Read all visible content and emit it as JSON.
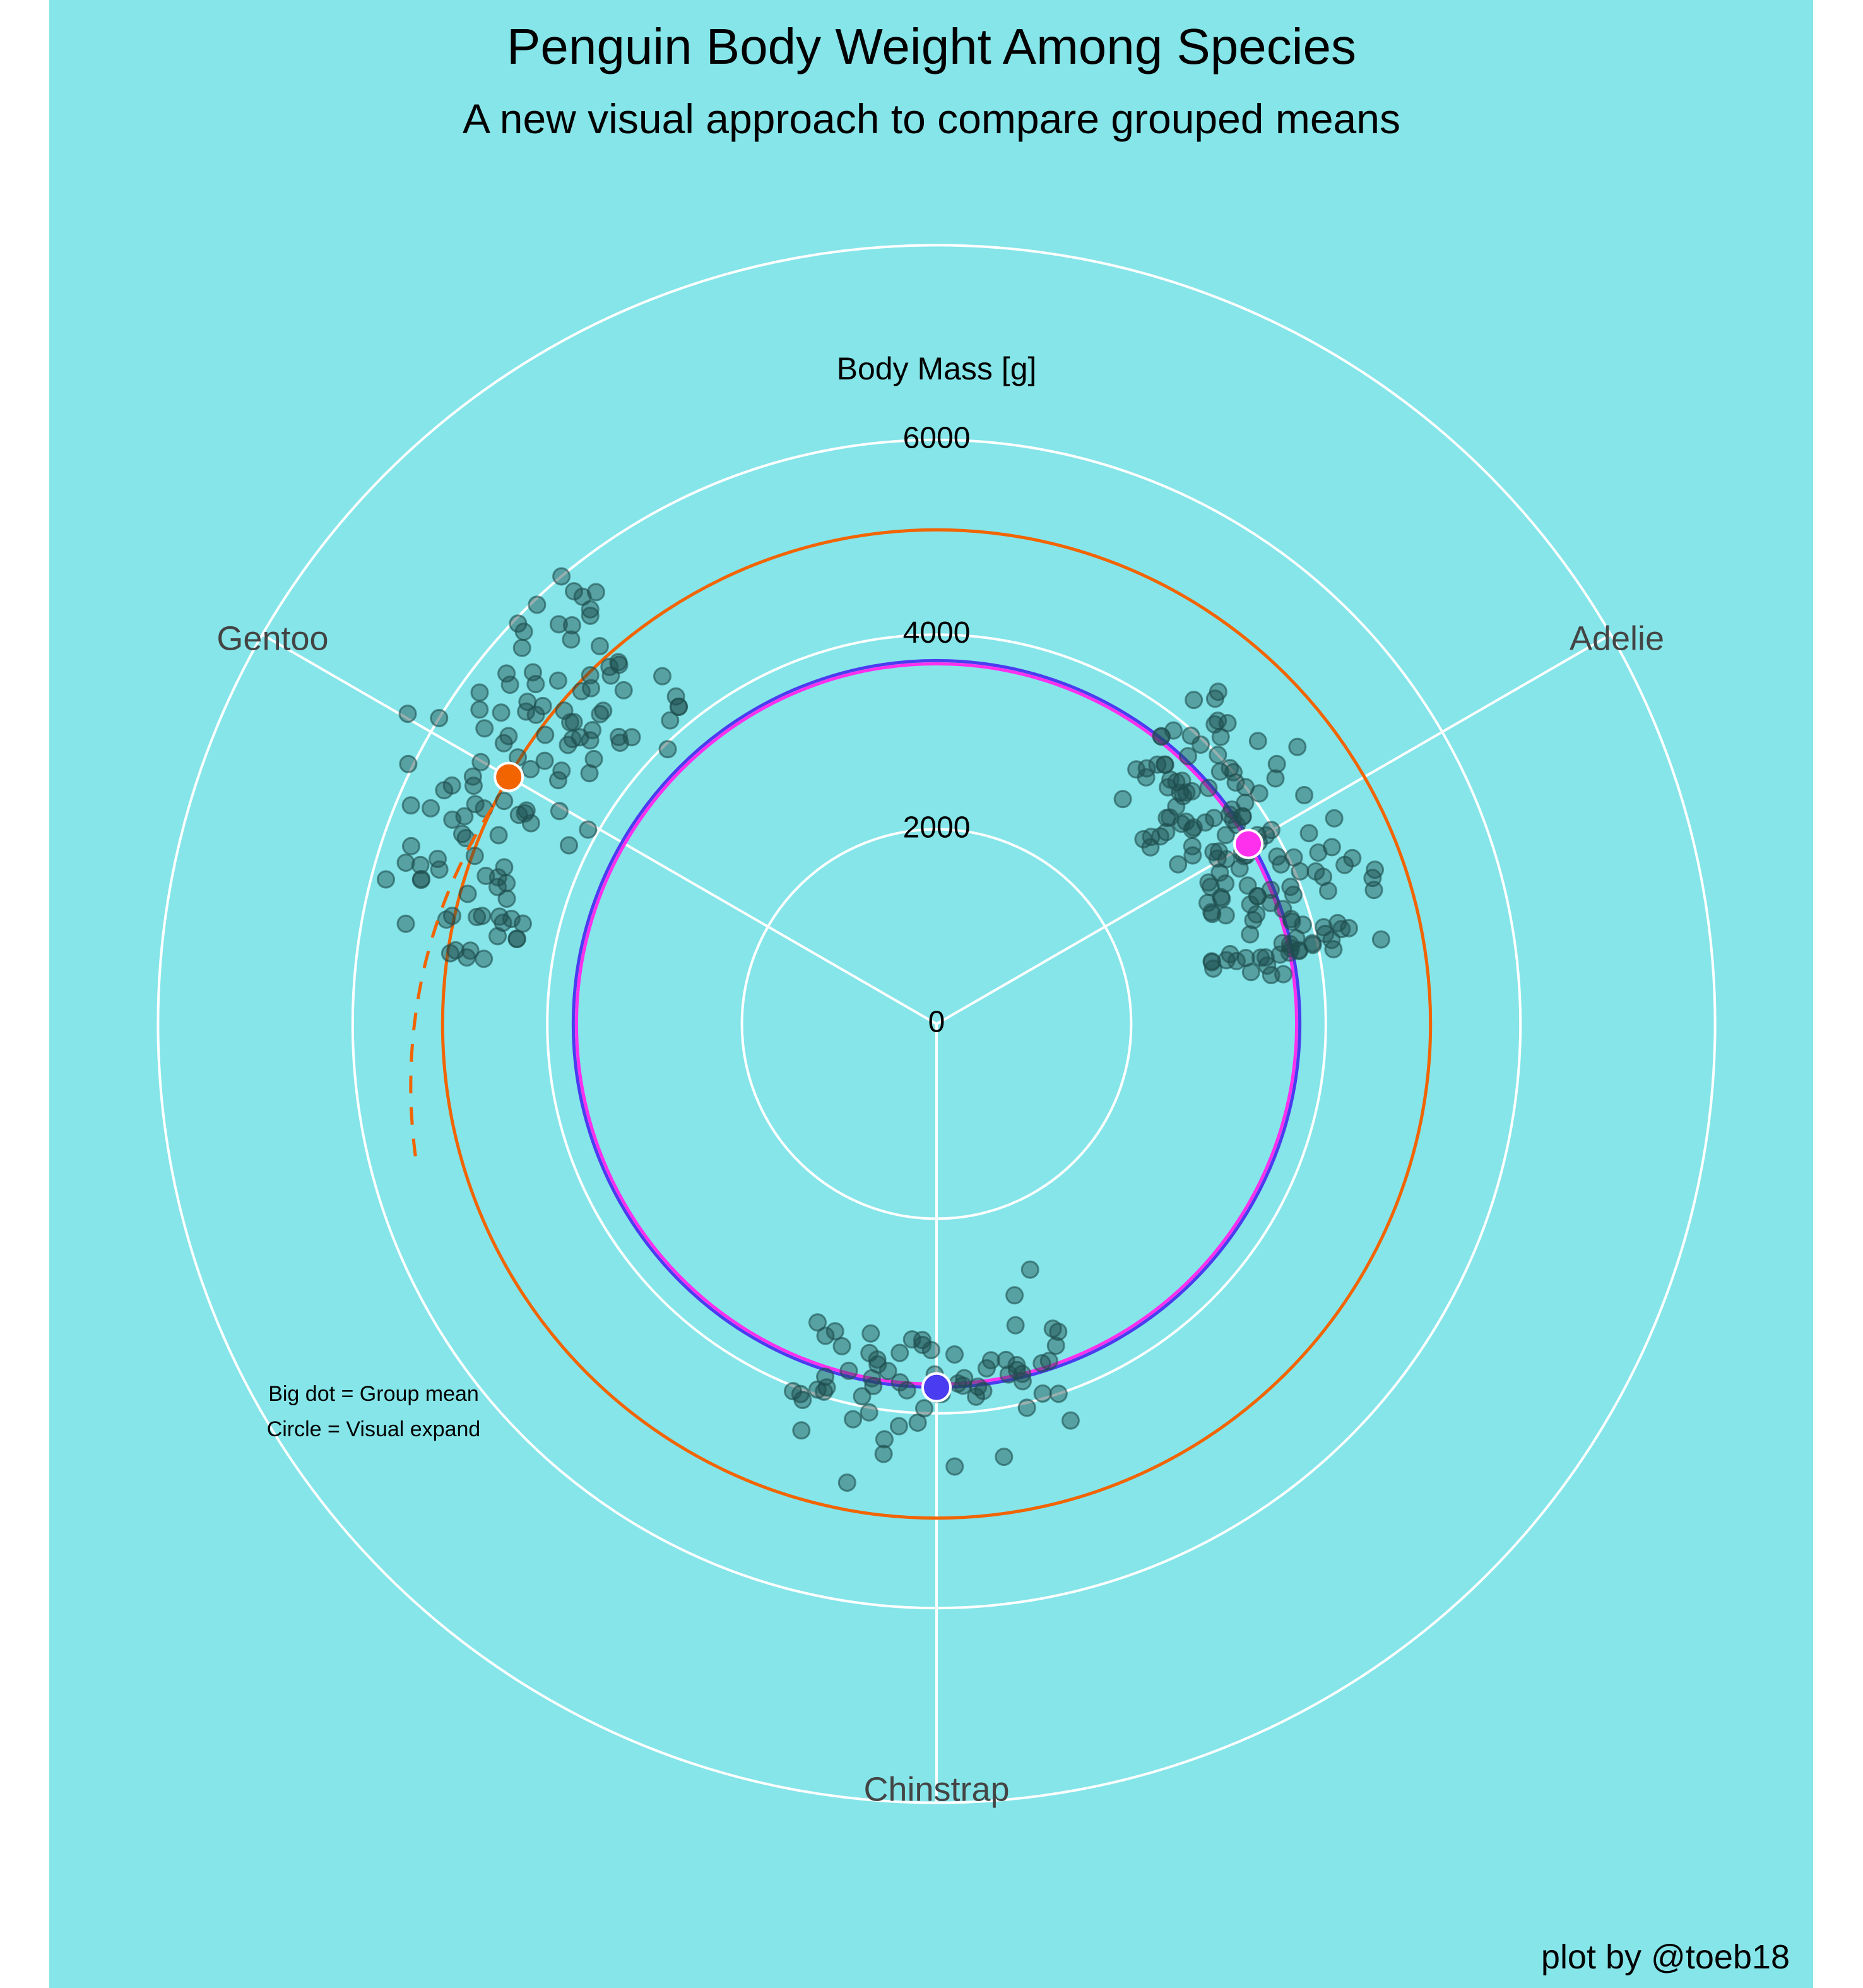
{
  "title": "Penguin Body Weight Among Species",
  "subtitle": "A new visual approach to compare grouped means",
  "axis_label": "Body Mass [g]",
  "caption": "plot by @toeb18",
  "annotation": [
    "Big dot = Group mean",
    "Circle = Visual expand"
  ],
  "colors": {
    "background": "#85E5E9",
    "grid": "#FFFFFF",
    "points": "#1E4E4E",
    "gentoo": "#F26400",
    "adelie": "#FF2FEE",
    "chinstrap": "#4A3CF0"
  },
  "chart_data": {
    "type": "scatter",
    "coordinate_system": "polar",
    "categories": [
      "Adelie",
      "Chinstrap",
      "Gentoo"
    ],
    "r_ticks": [
      "0",
      "2000",
      "4000",
      "6000"
    ],
    "r_grid": [
      0,
      2000,
      4000,
      6000,
      8000
    ],
    "r_max": 8000,
    "axis_label": "Body Mass [g]",
    "means": [
      {
        "species": "Adelie",
        "value": 3700,
        "color": "#FF2FEE"
      },
      {
        "species": "Chinstrap",
        "value": 3733,
        "color": "#4A3CF0"
      },
      {
        "species": "Gentoo",
        "value": 5076,
        "color": "#F26400"
      }
    ],
    "points": {
      "Adelie": [
        3750,
        3800,
        3250,
        3450,
        3650,
        3625,
        4675,
        3475,
        4250,
        3300,
        3700,
        3200,
        3800,
        4400,
        3700,
        3450,
        4500,
        3325,
        4200,
        3400,
        3600,
        3800,
        3950,
        3800,
        3800,
        3550,
        3200,
        3150,
        3950,
        3250,
        3900,
        3300,
        3900,
        3325,
        4150,
        3950,
        3550,
        3300,
        4650,
        3150,
        3900,
        3100,
        4400,
        3000,
        4600,
        3425,
        2975,
        3450,
        4150,
        3500,
        4300,
        3450,
        4050,
        2900,
        3700,
        3550,
        3800,
        2850,
        3750,
        3150,
        4400,
        3600,
        4050,
        2850,
        3950,
        3350,
        4100,
        3050,
        4450,
        3600,
        3900,
        3550,
        4150,
        3700,
        4250,
        3700,
        3900,
        3550,
        4000,
        3200,
        4700,
        3800,
        4200,
        3350,
        3550,
        3800,
        3500,
        3950,
        3600,
        3550,
        4300,
        3400,
        4450,
        3300,
        4300,
        3700,
        4350,
        2900,
        4100,
        3725,
        4725,
        3075,
        4250,
        2925,
        3550,
        3750,
        3900,
        3175,
        4775,
        3825,
        4600,
        3200,
        4275,
        3900,
        4075,
        2900,
        3775,
        3350,
        3325,
        3150,
        3500,
        3450,
        3875,
        3050,
        4000,
        3275,
        4300,
        3050,
        4000,
        3325,
        3500,
        3500,
        4475,
        3425,
        3900,
        3175,
        3975,
        3400,
        4250,
        3400,
        3475,
        3050,
        3725,
        3000,
        3650,
        4250,
        3475,
        3450,
        3750,
        3700,
        4000
      ],
      "Chinstrap": [
        3500,
        3900,
        3650,
        3525,
        3725,
        3950,
        3250,
        3750,
        4150,
        3700,
        3800,
        3775,
        3700,
        4050,
        3575,
        4050,
        3300,
        3700,
        3450,
        4400,
        3600,
        3400,
        2900,
        3800,
        3300,
        4150,
        3400,
        3800,
        3700,
        4550,
        3200,
        4300,
        3350,
        4100,
        3600,
        3900,
        3850,
        4800,
        2700,
        4500,
        3950,
        3650,
        3550,
        3500,
        3675,
        4450,
        3400,
        4300,
        3250,
        3675,
        3325,
        3950,
        3600,
        4050,
        3350,
        3450,
        3250,
        4050,
        3800,
        3525,
        3950,
        3650,
        3650,
        4000,
        3400,
        3775,
        4100,
        3775
      ],
      "Gentoo": [
        4500,
        5700,
        4450,
        5700,
        5400,
        4550,
        4800,
        5200,
        4400,
        5150,
        4650,
        5550,
        4650,
        5850,
        4200,
        5850,
        4150,
        6300,
        4800,
        5350,
        5700,
        5000,
        4400,
        5050,
        5000,
        5100,
        4100,
        5650,
        4600,
        5550,
        5250,
        4700,
        5050,
        6050,
        5150,
        5400,
        4950,
        5250,
        4350,
        5350,
        3950,
        5700,
        4300,
        4750,
        5550,
        4900,
        4200,
        5400,
        5100,
        5300,
        4850,
        5300,
        4400,
        5000,
        4900,
        5050,
        4300,
        5000,
        4450,
        5550,
        4200,
        5300,
        4400,
        5650,
        4700,
        5700,
        4650,
        5800,
        4700,
        5550,
        4750,
        5000,
        5100,
        5200,
        4700,
        5800,
        4600,
        6000,
        4750,
        5950,
        4625,
        5450,
        4725,
        5350,
        4750,
        5600,
        4600,
        5300,
        4875,
        5550,
        4950,
        5400,
        4750,
        5650,
        4850,
        5200,
        4925,
        4875,
        4625,
        5250,
        4850,
        5600,
        4975,
        5500,
        4725,
        5500,
        4700,
        5500,
        4575,
        5500,
        5000,
        5950,
        4650,
        5500,
        4375,
        5850,
        4875,
        6000,
        4925,
        4850,
        5750,
        5200,
        5400
      ]
    }
  }
}
